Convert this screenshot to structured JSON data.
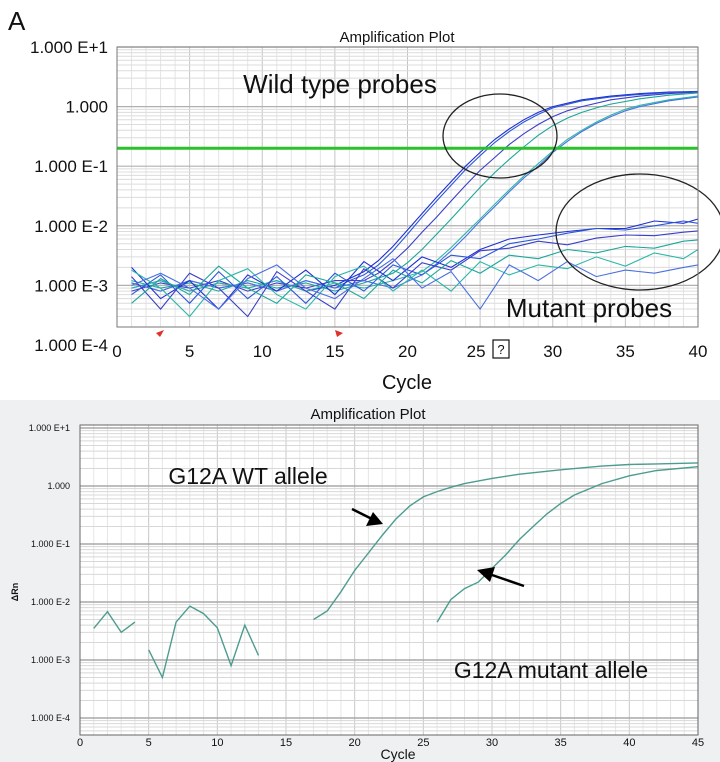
{
  "panel_label": "A",
  "chart_data": [
    {
      "type": "line",
      "title": "Amplification Plot",
      "xlabel": "Cycle",
      "ylabel": "",
      "yscale": "log",
      "xlim": [
        0,
        40
      ],
      "ylim": [
        0.0002,
        10
      ],
      "grid": true,
      "x_ticks": [
        "0",
        "5",
        "10",
        "15",
        "20",
        "25",
        "30",
        "35",
        "40"
      ],
      "y_ticks": [
        {
          "value": 10,
          "label": "1.000 E+1"
        },
        {
          "value": 1,
          "label": "1.000"
        },
        {
          "value": 0.1,
          "label": "1.000 E-1"
        },
        {
          "value": 0.01,
          "label": "1.000 E-2"
        },
        {
          "value": 0.001,
          "label": "1.000 E-3"
        },
        {
          "value": 0.0001,
          "label": "1.000 E-4"
        }
      ],
      "threshold": {
        "value": 0.2,
        "color": "#2bc12b"
      },
      "tick_glyph": "?",
      "annotations": [
        "Wild type probes",
        "Mutant probes"
      ],
      "line_colors": [
        "#1f2fd0",
        "#2a57d8",
        "#3a3fc8",
        "#1aa79a",
        "#2bb7a8",
        "#4a6fe0"
      ],
      "series": [
        {
          "group": "wild type",
          "x": [
            1,
            3,
            5,
            7,
            9,
            11,
            13,
            15,
            16,
            17,
            18,
            19,
            20,
            21,
            22,
            23,
            24,
            25,
            26,
            27,
            28,
            29,
            30,
            32,
            34,
            36,
            38,
            40
          ],
          "values": [
            0.0009,
            0.0012,
            0.0008,
            0.0011,
            0.0009,
            0.0012,
            0.0008,
            0.001,
            0.0013,
            0.0017,
            0.0026,
            0.0045,
            0.0085,
            0.016,
            0.03,
            0.055,
            0.1,
            0.17,
            0.28,
            0.42,
            0.6,
            0.8,
            1.0,
            1.3,
            1.5,
            1.65,
            1.75,
            1.8
          ]
        },
        {
          "group": "wild type",
          "x": [
            1,
            3,
            5,
            7,
            9,
            11,
            13,
            15,
            16,
            17,
            18,
            19,
            20,
            21,
            22,
            23,
            24,
            25,
            26,
            27,
            28,
            29,
            30,
            32,
            34,
            36,
            38,
            40
          ],
          "values": [
            0.0011,
            0.0008,
            0.0012,
            0.0009,
            0.0011,
            0.0008,
            0.0012,
            0.0009,
            0.0012,
            0.0015,
            0.0022,
            0.0038,
            0.0072,
            0.014,
            0.026,
            0.048,
            0.088,
            0.15,
            0.25,
            0.38,
            0.55,
            0.74,
            0.95,
            1.25,
            1.45,
            1.6,
            1.72,
            1.78
          ]
        },
        {
          "group": "wild type",
          "x": [
            1,
            3,
            5,
            7,
            9,
            11,
            13,
            15,
            17,
            18,
            19,
            20,
            21,
            22,
            23,
            24,
            25,
            26,
            27,
            28,
            29,
            30,
            31,
            32,
            34,
            36,
            38,
            40
          ],
          "values": [
            0.0008,
            0.0011,
            0.0009,
            0.0012,
            0.0008,
            0.0011,
            0.0009,
            0.0012,
            0.0012,
            0.0016,
            0.0025,
            0.0042,
            0.0078,
            0.014,
            0.026,
            0.048,
            0.085,
            0.14,
            0.23,
            0.35,
            0.5,
            0.68,
            0.85,
            1.0,
            1.3,
            1.5,
            1.65,
            1.75
          ]
        },
        {
          "group": "wild type",
          "x": [
            1,
            3,
            5,
            7,
            9,
            11,
            13,
            15,
            17,
            19,
            20,
            21,
            22,
            23,
            24,
            25,
            26,
            27,
            28,
            29,
            30,
            31,
            32,
            33,
            34,
            36,
            38,
            40
          ],
          "values": [
            0.0012,
            0.0009,
            0.0011,
            0.0008,
            0.0012,
            0.0009,
            0.0011,
            0.0008,
            0.0011,
            0.0016,
            0.0024,
            0.004,
            0.0072,
            0.013,
            0.024,
            0.044,
            0.078,
            0.13,
            0.21,
            0.33,
            0.48,
            0.64,
            0.8,
            0.95,
            1.1,
            1.35,
            1.55,
            1.7
          ]
        },
        {
          "group": "wild type",
          "x": [
            1,
            3,
            5,
            7,
            9,
            11,
            13,
            15,
            17,
            19,
            21,
            22,
            23,
            24,
            25,
            26,
            27,
            28,
            29,
            30,
            31,
            32,
            33,
            34,
            35,
            36,
            38,
            40
          ],
          "values": [
            0.0009,
            0.0012,
            0.0008,
            0.0011,
            0.0009,
            0.0012,
            0.0008,
            0.0011,
            0.0009,
            0.0012,
            0.0017,
            0.0026,
            0.0043,
            0.0075,
            0.013,
            0.023,
            0.04,
            0.068,
            0.11,
            0.18,
            0.28,
            0.4,
            0.55,
            0.72,
            0.9,
            1.05,
            1.3,
            1.5
          ]
        },
        {
          "group": "wild type",
          "x": [
            1,
            3,
            5,
            7,
            9,
            11,
            13,
            15,
            17,
            19,
            21,
            22,
            23,
            24,
            25,
            26,
            27,
            28,
            29,
            30,
            31,
            32,
            33,
            34,
            35,
            36,
            38,
            40
          ],
          "values": [
            0.0011,
            0.0008,
            0.0012,
            0.0009,
            0.0011,
            0.0008,
            0.0012,
            0.0009,
            0.0012,
            0.0009,
            0.0015,
            0.0023,
            0.0038,
            0.0066,
            0.012,
            0.021,
            0.037,
            0.063,
            0.1,
            0.17,
            0.26,
            0.38,
            0.52,
            0.68,
            0.85,
            1.0,
            1.25,
            1.45
          ]
        },
        {
          "group": "mutant",
          "x": [
            1,
            3,
            5,
            7,
            9,
            11,
            13,
            15,
            17,
            19,
            21,
            23,
            25,
            27,
            29,
            31,
            33,
            35,
            37,
            39,
            40
          ],
          "values": [
            0.002,
            0.0006,
            0.0012,
            0.0004,
            0.0015,
            0.0008,
            0.0018,
            0.0007,
            0.0025,
            0.0012,
            0.003,
            0.002,
            0.004,
            0.006,
            0.007,
            0.008,
            0.009,
            0.009,
            0.012,
            0.011,
            0.013
          ]
        },
        {
          "group": "mutant",
          "x": [
            1,
            3,
            5,
            7,
            9,
            11,
            13,
            15,
            17,
            19,
            21,
            23,
            25,
            27,
            29,
            31,
            33,
            35,
            37,
            39,
            40
          ],
          "values": [
            0.0007,
            0.0015,
            0.0005,
            0.0017,
            0.0006,
            0.0014,
            0.0005,
            0.0016,
            0.0008,
            0.0022,
            0.0015,
            0.0032,
            0.0028,
            0.005,
            0.006,
            0.0075,
            0.009,
            0.0085,
            0.01,
            0.012,
            0.011
          ]
        },
        {
          "group": "mutant",
          "x": [
            1,
            3,
            5,
            7,
            9,
            11,
            13,
            15,
            17,
            19,
            21,
            23,
            25,
            27,
            29,
            31,
            33,
            35,
            37,
            39,
            40
          ],
          "values": [
            0.0014,
            0.0004,
            0.0016,
            0.0009,
            0.0003,
            0.0017,
            0.0008,
            0.0004,
            0.0019,
            0.0009,
            0.0024,
            0.0018,
            0.0038,
            0.0042,
            0.0055,
            0.0048,
            0.0062,
            0.007,
            0.0068,
            0.0078,
            0.0082
          ]
        },
        {
          "group": "mutant",
          "x": [
            1,
            3,
            5,
            7,
            9,
            11,
            13,
            15,
            17,
            19,
            21,
            23,
            25,
            27,
            29,
            31,
            33,
            35,
            37,
            39,
            40
          ],
          "values": [
            0.0005,
            0.0013,
            0.0007,
            0.0021,
            0.0009,
            0.0005,
            0.0015,
            0.0011,
            0.0006,
            0.0018,
            0.0011,
            0.0026,
            0.0016,
            0.0032,
            0.0028,
            0.004,
            0.0035,
            0.0045,
            0.0042,
            0.0055,
            0.0058
          ]
        },
        {
          "group": "mutant",
          "x": [
            1,
            3,
            5,
            7,
            9,
            11,
            13,
            15,
            17,
            19,
            21,
            23,
            25,
            27,
            29,
            31,
            33,
            35,
            37,
            39,
            40
          ],
          "values": [
            0.0018,
            0.0009,
            0.0003,
            0.0012,
            0.0019,
            0.0007,
            0.0004,
            0.0014,
            0.0021,
            0.0008,
            0.0018,
            0.0008,
            0.0025,
            0.0015,
            0.0022,
            0.0019,
            0.003,
            0.0021,
            0.0035,
            0.0028,
            0.004
          ]
        },
        {
          "group": "mutant",
          "x": [
            1,
            3,
            5,
            7,
            9,
            11,
            13,
            15,
            17,
            19,
            21,
            23,
            25,
            27,
            29,
            31,
            33,
            35,
            37,
            39,
            40
          ],
          "values": [
            0.001,
            0.0016,
            0.0009,
            0.0004,
            0.0013,
            0.0022,
            0.0009,
            0.0006,
            0.0013,
            0.0028,
            0.0009,
            0.0017,
            0.0004,
            0.0022,
            0.0012,
            0.0025,
            0.0014,
            0.0018,
            0.0016,
            0.002,
            0.0022
          ]
        }
      ]
    },
    {
      "type": "line",
      "title": "Amplification Plot",
      "xlabel": "Cycle",
      "ylabel": "ΔRn",
      "yscale": "log",
      "xlim": [
        0,
        45
      ],
      "ylim": [
        0.0001,
        10
      ],
      "grid": true,
      "x_ticks": [
        "0",
        "5",
        "10",
        "15",
        "20",
        "25",
        "30",
        "35",
        "40",
        "45"
      ],
      "y_ticks": [
        {
          "value": 10,
          "label": "1.000 E+1"
        },
        {
          "value": 1,
          "label": "1.000"
        },
        {
          "value": 0.1,
          "label": "1.000 E-1"
        },
        {
          "value": 0.01,
          "label": "1.000 E-2"
        },
        {
          "value": 0.001,
          "label": "1.000 E-3"
        },
        {
          "value": 0.0001,
          "label": "1.000 E-4"
        }
      ],
      "annotations": [
        "G12A WT allele",
        "G12A mutant allele"
      ],
      "line_color": "#4d9c8f",
      "arrow_color": "#000000",
      "series": [
        {
          "name": "G12A WT allele",
          "segments": [
            {
              "x": [
                1,
                2,
                3,
                4
              ],
              "values": [
                0.0035,
                0.0068,
                0.003,
                0.0045
              ]
            },
            {
              "x": [
                5,
                6,
                7,
                8,
                9,
                10,
                11,
                12,
                13
              ],
              "values": [
                0.0015,
                0.0005,
                0.0045,
                0.0085,
                0.0063,
                0.0036,
                0.0008,
                0.004,
                0.0012
              ]
            },
            {
              "x": [
                17,
                18,
                19,
                20,
                21,
                22,
                23,
                24,
                25,
                26,
                27,
                28,
                30,
                32,
                35,
                38,
                40,
                42,
                45
              ],
              "values": [
                0.005,
                0.007,
                0.015,
                0.035,
                0.07,
                0.14,
                0.27,
                0.45,
                0.65,
                0.8,
                0.95,
                1.1,
                1.35,
                1.6,
                1.9,
                2.2,
                2.35,
                2.4,
                2.5
              ]
            }
          ]
        },
        {
          "name": "G12A mutant allele",
          "segments": [
            {
              "x": [
                26,
                27,
                28,
                29,
                30,
                31,
                32,
                33,
                34,
                35,
                36,
                38,
                40,
                42,
                45
              ],
              "values": [
                0.0045,
                0.011,
                0.017,
                0.022,
                0.038,
                0.065,
                0.12,
                0.2,
                0.33,
                0.5,
                0.7,
                1.1,
                1.5,
                1.85,
                2.15
              ]
            }
          ]
        }
      ]
    }
  ]
}
